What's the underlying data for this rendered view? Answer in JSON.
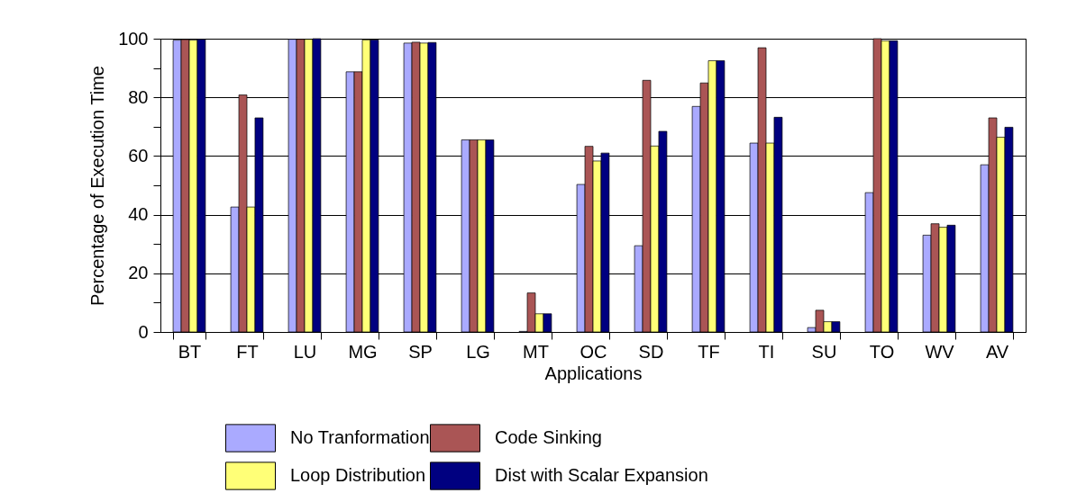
{
  "chart_data": {
    "type": "bar",
    "xlabel": "Applications",
    "ylabel": "Percentage of Execution Time",
    "categories": [
      "BT",
      "FT",
      "LU",
      "MG",
      "SP",
      "LG",
      "MT",
      "OC",
      "SD",
      "TF",
      "TI",
      "SU",
      "TO",
      "WV",
      "AV"
    ],
    "series": [
      {
        "name": "No Tranformation",
        "color": "#aaaaff",
        "values": [
          99.5,
          42.6,
          99.8,
          88.7,
          98.5,
          65.5,
          0.2,
          50.3,
          29.4,
          76.9,
          64.4,
          1.5,
          47.5,
          33.0,
          57.0
        ]
      },
      {
        "name": "Code Sinking",
        "color": "#aa5555",
        "values": [
          99.7,
          80.8,
          99.8,
          88.7,
          98.8,
          65.5,
          13.3,
          63.3,
          85.8,
          84.9,
          96.9,
          7.4,
          100,
          36.9,
          73.0
        ]
      },
      {
        "name": "Loop Distribution",
        "color": "#ffff77",
        "values": [
          99.5,
          42.6,
          99.8,
          99.6,
          98.5,
          65.5,
          6.2,
          58.3,
          63.4,
          92.5,
          64.4,
          3.5,
          99.3,
          35.7,
          66.4
        ]
      },
      {
        "name": "Dist with Scalar Expansion",
        "color": "#000080",
        "values": [
          99.8,
          73.0,
          100,
          99.6,
          98.7,
          65.5,
          6.2,
          61.0,
          68.4,
          92.5,
          73.2,
          3.5,
          99.3,
          36.4,
          69.8
        ]
      }
    ],
    "ylim": [
      0,
      100
    ],
    "yticks": [
      0,
      {
        "value": 10,
        "label": null
      },
      20,
      {
        "value": 30,
        "label": null
      },
      40,
      {
        "value": 50,
        "label": null
      },
      60,
      {
        "value": 70,
        "label": null
      },
      80,
      {
        "value": 90,
        "label": null
      },
      100
    ],
    "grid": "y",
    "legend": "bottom"
  }
}
